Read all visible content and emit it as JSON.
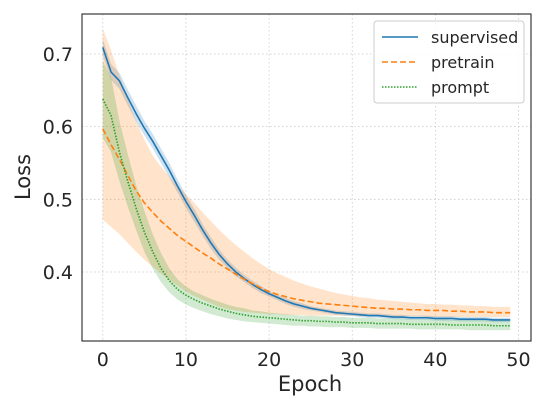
{
  "chart_data": {
    "type": "line",
    "xlabel": "Epoch",
    "ylabel": "Loss",
    "xlim": [
      -2.5,
      51.5
    ],
    "ylim": [
      0.305,
      0.755
    ],
    "xticks": [
      0,
      10,
      20,
      30,
      40,
      50
    ],
    "yticks": [
      0.4,
      0.5,
      0.6,
      0.7
    ],
    "ytick_labels": [
      "0.4",
      "0.5",
      "0.6",
      "0.7"
    ],
    "grid": true,
    "legend": {
      "placement": "top-right"
    },
    "series": [
      {
        "name": "supervised",
        "color": "#1f77b4",
        "style": "solid",
        "x": [
          0,
          1,
          2,
          3,
          4,
          5,
          6,
          7,
          8,
          9,
          10,
          11,
          12,
          13,
          14,
          15,
          16,
          17,
          18,
          19,
          20,
          21,
          22,
          23,
          24,
          25,
          26,
          27,
          28,
          29,
          30,
          31,
          32,
          33,
          34,
          35,
          36,
          37,
          38,
          39,
          40,
          41,
          42,
          43,
          44,
          45,
          46,
          47,
          48,
          49
        ],
        "y": [
          0.709,
          0.675,
          0.663,
          0.64,
          0.618,
          0.598,
          0.58,
          0.56,
          0.54,
          0.518,
          0.497,
          0.478,
          0.458,
          0.44,
          0.424,
          0.411,
          0.4,
          0.391,
          0.383,
          0.376,
          0.37,
          0.365,
          0.36,
          0.356,
          0.353,
          0.35,
          0.348,
          0.346,
          0.344,
          0.343,
          0.342,
          0.341,
          0.34,
          0.34,
          0.339,
          0.338,
          0.338,
          0.337,
          0.337,
          0.337,
          0.336,
          0.336,
          0.336,
          0.335,
          0.335,
          0.335,
          0.335,
          0.334,
          0.334,
          0.334
        ],
        "lower": [
          0.698,
          0.664,
          0.652,
          0.629,
          0.607,
          0.588,
          0.57,
          0.55,
          0.53,
          0.509,
          0.488,
          0.469,
          0.45,
          0.432,
          0.417,
          0.405,
          0.394,
          0.386,
          0.378,
          0.371,
          0.366,
          0.361,
          0.356,
          0.352,
          0.349,
          0.347,
          0.345,
          0.343,
          0.341,
          0.34,
          0.339,
          0.338,
          0.337,
          0.337,
          0.336,
          0.335,
          0.335,
          0.334,
          0.334,
          0.334,
          0.333,
          0.333,
          0.333,
          0.332,
          0.332,
          0.332,
          0.332,
          0.331,
          0.331,
          0.331
        ],
        "upper": [
          0.72,
          0.686,
          0.674,
          0.651,
          0.629,
          0.608,
          0.59,
          0.57,
          0.55,
          0.527,
          0.506,
          0.487,
          0.466,
          0.448,
          0.431,
          0.417,
          0.406,
          0.396,
          0.388,
          0.381,
          0.374,
          0.369,
          0.364,
          0.36,
          0.357,
          0.353,
          0.351,
          0.349,
          0.347,
          0.346,
          0.345,
          0.344,
          0.343,
          0.343,
          0.342,
          0.341,
          0.341,
          0.34,
          0.34,
          0.34,
          0.339,
          0.339,
          0.339,
          0.338,
          0.338,
          0.338,
          0.338,
          0.337,
          0.337,
          0.337
        ]
      },
      {
        "name": "pretrain",
        "color": "#ff7f0e",
        "style": "dashed",
        "x": [
          0,
          1,
          2,
          3,
          4,
          5,
          6,
          7,
          8,
          9,
          10,
          11,
          12,
          13,
          14,
          15,
          16,
          17,
          18,
          19,
          20,
          21,
          22,
          23,
          24,
          25,
          26,
          27,
          28,
          29,
          30,
          31,
          32,
          33,
          34,
          35,
          36,
          37,
          38,
          39,
          40,
          41,
          42,
          43,
          44,
          45,
          46,
          47,
          48,
          49
        ],
        "y": [
          0.597,
          0.575,
          0.555,
          0.533,
          0.512,
          0.495,
          0.482,
          0.47,
          0.46,
          0.45,
          0.442,
          0.434,
          0.426,
          0.419,
          0.411,
          0.404,
          0.397,
          0.39,
          0.384,
          0.378,
          0.373,
          0.369,
          0.366,
          0.363,
          0.361,
          0.359,
          0.357,
          0.356,
          0.355,
          0.354,
          0.353,
          0.352,
          0.351,
          0.35,
          0.35,
          0.349,
          0.349,
          0.348,
          0.348,
          0.347,
          0.347,
          0.347,
          0.346,
          0.346,
          0.345,
          0.345,
          0.345,
          0.344,
          0.344,
          0.344
        ],
        "lower": [
          0.472,
          0.462,
          0.452,
          0.44,
          0.428,
          0.417,
          0.407,
          0.398,
          0.389,
          0.381,
          0.373,
          0.367,
          0.362,
          0.357,
          0.352,
          0.349,
          0.347,
          0.345,
          0.344,
          0.343,
          0.342,
          0.342,
          0.341,
          0.341,
          0.341,
          0.34,
          0.34,
          0.34,
          0.34,
          0.34,
          0.34,
          0.339,
          0.339,
          0.339,
          0.339,
          0.339,
          0.339,
          0.339,
          0.339,
          0.338,
          0.338,
          0.338,
          0.338,
          0.338,
          0.338,
          0.338,
          0.338,
          0.338,
          0.338,
          0.338
        ],
        "upper": [
          0.735,
          0.705,
          0.67,
          0.638,
          0.608,
          0.582,
          0.56,
          0.545,
          0.531,
          0.519,
          0.507,
          0.495,
          0.482,
          0.47,
          0.458,
          0.447,
          0.437,
          0.428,
          0.419,
          0.411,
          0.404,
          0.398,
          0.393,
          0.388,
          0.384,
          0.38,
          0.377,
          0.374,
          0.371,
          0.369,
          0.367,
          0.365,
          0.364,
          0.362,
          0.361,
          0.36,
          0.359,
          0.358,
          0.357,
          0.356,
          0.356,
          0.355,
          0.355,
          0.354,
          0.354,
          0.353,
          0.353,
          0.352,
          0.352,
          0.352
        ]
      },
      {
        "name": "prompt",
        "color": "#2ca02c",
        "style": "dotted",
        "x": [
          0,
          1,
          2,
          3,
          4,
          5,
          6,
          7,
          8,
          9,
          10,
          11,
          12,
          13,
          14,
          15,
          16,
          17,
          18,
          19,
          20,
          21,
          22,
          23,
          24,
          25,
          26,
          27,
          28,
          29,
          30,
          31,
          32,
          33,
          34,
          35,
          36,
          37,
          38,
          39,
          40,
          41,
          42,
          43,
          44,
          45,
          46,
          47,
          48,
          49
        ],
        "y": [
          0.638,
          0.615,
          0.565,
          0.525,
          0.488,
          0.455,
          0.428,
          0.405,
          0.388,
          0.376,
          0.368,
          0.362,
          0.357,
          0.353,
          0.349,
          0.346,
          0.343,
          0.341,
          0.339,
          0.338,
          0.337,
          0.336,
          0.335,
          0.334,
          0.333,
          0.333,
          0.332,
          0.332,
          0.331,
          0.331,
          0.33,
          0.33,
          0.33,
          0.329,
          0.329,
          0.329,
          0.329,
          0.328,
          0.328,
          0.328,
          0.328,
          0.328,
          0.327,
          0.327,
          0.327,
          0.327,
          0.327,
          0.326,
          0.326,
          0.326
        ],
        "lower": [
          0.585,
          0.565,
          0.525,
          0.49,
          0.458,
          0.428,
          0.405,
          0.386,
          0.372,
          0.362,
          0.355,
          0.35,
          0.346,
          0.342,
          0.339,
          0.336,
          0.334,
          0.332,
          0.331,
          0.33,
          0.329,
          0.328,
          0.327,
          0.326,
          0.326,
          0.325,
          0.325,
          0.324,
          0.324,
          0.324,
          0.323,
          0.323,
          0.323,
          0.322,
          0.322,
          0.322,
          0.322,
          0.322,
          0.321,
          0.321,
          0.321,
          0.321,
          0.321,
          0.321,
          0.32,
          0.32,
          0.32,
          0.32,
          0.32,
          0.32
        ],
        "upper": [
          0.69,
          0.668,
          0.608,
          0.562,
          0.52,
          0.484,
          0.452,
          0.426,
          0.405,
          0.39,
          0.38,
          0.373,
          0.368,
          0.363,
          0.359,
          0.355,
          0.352,
          0.35,
          0.347,
          0.346,
          0.344,
          0.343,
          0.342,
          0.341,
          0.34,
          0.34,
          0.339,
          0.339,
          0.338,
          0.338,
          0.337,
          0.337,
          0.337,
          0.336,
          0.336,
          0.336,
          0.336,
          0.335,
          0.335,
          0.335,
          0.335,
          0.335,
          0.334,
          0.334,
          0.334,
          0.334,
          0.334,
          0.333,
          0.333,
          0.333
        ]
      }
    ]
  }
}
